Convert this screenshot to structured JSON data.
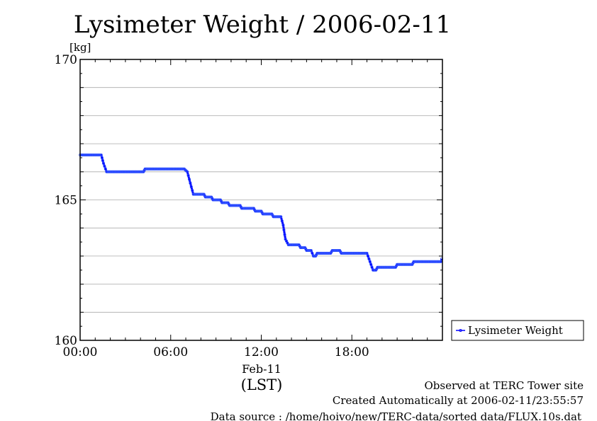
{
  "chart_data": {
    "type": "line",
    "title": "Lysimeter Weight / 2006-02-11",
    "ylabel": "[kg]",
    "xlabel": "(LST)",
    "date_label": "Feb-11",
    "x_ticks": [
      "00:00",
      "06:00",
      "12:00",
      "18:00"
    ],
    "y_ticks": [
      "160",
      "165",
      "170"
    ],
    "xlim": [
      0,
      24
    ],
    "ylim": [
      160,
      170
    ],
    "grid": "horizontal",
    "legend_position": "right",
    "series": [
      {
        "name": "Lysimeter Weight",
        "color": "#0000ff",
        "points": [
          [
            0.0,
            166.6
          ],
          [
            1.4,
            166.6
          ],
          [
            1.55,
            166.3
          ],
          [
            1.75,
            166.0
          ],
          [
            4.2,
            166.0
          ],
          [
            4.3,
            166.1
          ],
          [
            6.9,
            166.1
          ],
          [
            7.1,
            166.0
          ],
          [
            7.3,
            165.6
          ],
          [
            7.5,
            165.2
          ],
          [
            8.2,
            165.2
          ],
          [
            8.3,
            165.1
          ],
          [
            8.7,
            165.1
          ],
          [
            8.8,
            165.0
          ],
          [
            9.3,
            165.0
          ],
          [
            9.4,
            164.9
          ],
          [
            9.8,
            164.9
          ],
          [
            9.9,
            164.8
          ],
          [
            10.6,
            164.8
          ],
          [
            10.7,
            164.7
          ],
          [
            11.5,
            164.7
          ],
          [
            11.6,
            164.6
          ],
          [
            12.0,
            164.6
          ],
          [
            12.1,
            164.5
          ],
          [
            12.7,
            164.5
          ],
          [
            12.8,
            164.4
          ],
          [
            13.3,
            164.4
          ],
          [
            13.45,
            164.1
          ],
          [
            13.6,
            163.6
          ],
          [
            13.8,
            163.4
          ],
          [
            14.5,
            163.4
          ],
          [
            14.6,
            163.3
          ],
          [
            14.9,
            163.3
          ],
          [
            15.0,
            163.2
          ],
          [
            15.3,
            163.2
          ],
          [
            15.45,
            163.0
          ],
          [
            15.6,
            163.0
          ],
          [
            15.7,
            163.1
          ],
          [
            16.6,
            163.1
          ],
          [
            16.7,
            163.2
          ],
          [
            17.2,
            163.2
          ],
          [
            17.3,
            163.1
          ],
          [
            19.0,
            163.1
          ],
          [
            19.2,
            162.8
          ],
          [
            19.4,
            162.5
          ],
          [
            19.6,
            162.5
          ],
          [
            19.7,
            162.6
          ],
          [
            20.9,
            162.6
          ],
          [
            21.0,
            162.7
          ],
          [
            22.0,
            162.7
          ],
          [
            22.1,
            162.8
          ],
          [
            23.9,
            162.8
          ],
          [
            23.95,
            162.9
          ]
        ]
      }
    ]
  },
  "legend": {
    "label": "Lysimeter Weight"
  },
  "footer": {
    "observed": "Observed at TERC Tower site",
    "created": "Created Automatically at 2006-02-11/23:55:57",
    "source": "Data source : /home/hoivo/new/TERC-data/sorted  data/FLUX.10s.dat"
  }
}
